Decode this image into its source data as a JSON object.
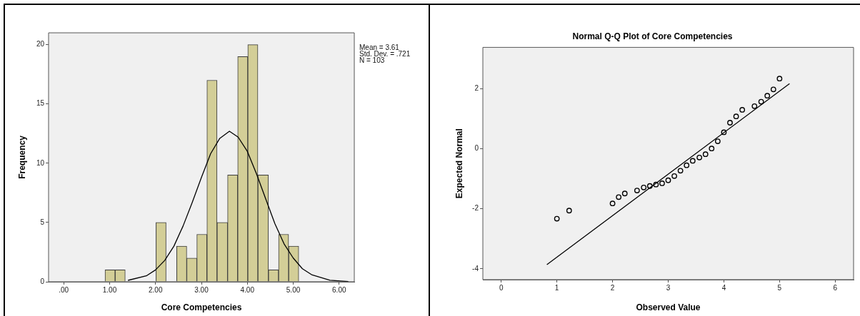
{
  "chart_data": [
    {
      "type": "histogram",
      "xlabel": "Core Competencies",
      "ylabel": "Frequency",
      "annotations": [
        "Mean = 3.61",
        "Std. Dev. = .721",
        "N = 103"
      ],
      "bins": [
        0.9,
        1.12,
        1.34,
        2.01,
        2.23,
        2.46,
        2.68,
        2.9,
        3.12,
        3.34,
        3.57,
        3.79,
        4.01,
        4.23,
        4.46,
        4.68,
        4.9,
        5.12
      ],
      "values": [
        1,
        1,
        0,
        5,
        0,
        3,
        2,
        4,
        17,
        5,
        9,
        19,
        20,
        9,
        1,
        4,
        3
      ],
      "color": "#d3ce97",
      "series": [
        {
          "type": "line",
          "color": "#000000",
          "marker": "none",
          "x": [
            1.4,
            1.8,
            2.0,
            2.2,
            2.4,
            2.6,
            2.8,
            3.0,
            3.2,
            3.4,
            3.61,
            3.8,
            4.0,
            4.2,
            4.4,
            4.6,
            4.8,
            5.0,
            5.2,
            5.4,
            5.8,
            6.2
          ],
          "values": [
            0.12,
            0.5,
            1.0,
            1.8,
            3.0,
            4.7,
            6.7,
            8.8,
            10.8,
            12.1,
            12.7,
            12.2,
            11.0,
            9.1,
            7.0,
            4.9,
            3.2,
            2.0,
            1.1,
            0.6,
            0.13,
            0.02
          ]
        }
      ],
      "xlim": [
        -0.33,
        6.33
      ],
      "xticks": [
        {
          "value": 0,
          "label": ".00"
        },
        {
          "value": 1,
          "label": "1.00"
        },
        {
          "value": 2,
          "label": "2.00"
        },
        {
          "value": 3,
          "label": "3.00"
        },
        {
          "value": 4,
          "label": "4.00"
        },
        {
          "value": 5,
          "label": "5.00"
        },
        {
          "value": 6,
          "label": "6.00"
        }
      ],
      "ylim": [
        0,
        21
      ],
      "yticks": [
        0,
        5,
        10,
        15,
        20
      ],
      "grid": false
    },
    {
      "type": "scatter",
      "title": "Normal Q-Q Plot of Core Competencies",
      "xlabel": "Observed Value",
      "ylabel": "Expected Normal",
      "series": [
        {
          "type": "scatter",
          "color": "#000000",
          "marker": "circle",
          "x": [
            1.0,
            1.22,
            2.0,
            2.11,
            2.22,
            2.44,
            2.56,
            2.67,
            2.78,
            2.89,
            3.0,
            3.11,
            3.22,
            3.33,
            3.44,
            3.56,
            3.67,
            3.78,
            3.89,
            4.0,
            4.11,
            4.22,
            4.33,
            4.55,
            4.67,
            4.78,
            4.89,
            5.0
          ],
          "values": [
            -2.33,
            -2.06,
            -1.82,
            -1.61,
            -1.49,
            -1.39,
            -1.29,
            -1.24,
            -1.19,
            -1.15,
            -1.05,
            -0.91,
            -0.73,
            -0.55,
            -0.4,
            -0.29,
            -0.18,
            0.01,
            0.25,
            0.55,
            0.87,
            1.08,
            1.3,
            1.42,
            1.57,
            1.77,
            1.98,
            2.34
          ]
        },
        {
          "type": "line",
          "color": "#000000",
          "marker": "none",
          "x": [
            0.82,
            5.18
          ],
          "values": [
            -3.86,
            2.17
          ]
        }
      ],
      "xlim": [
        -0.33,
        6.33
      ],
      "xticks": [
        0,
        1,
        2,
        3,
        4,
        5,
        6
      ],
      "ylim": [
        -4.36,
        3.38
      ],
      "yticks": [
        -4,
        -2,
        0,
        2
      ],
      "grid": false
    }
  ]
}
